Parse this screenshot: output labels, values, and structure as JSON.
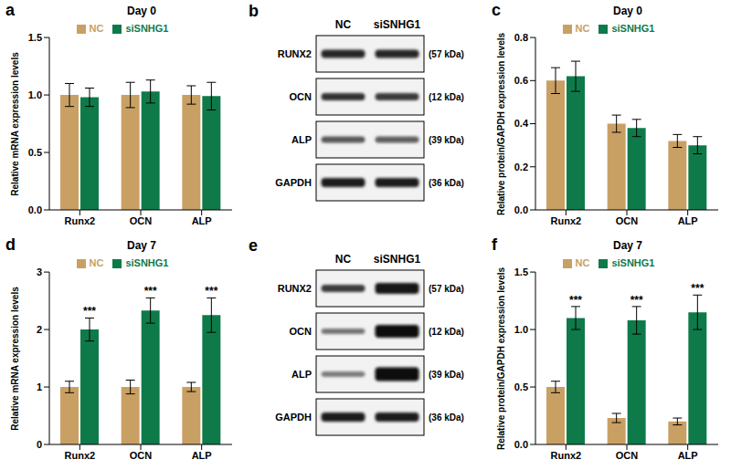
{
  "chart_data": [
    {
      "panel": "a",
      "type": "bar",
      "title": "Day 0",
      "y_label": "Relative mRNA expression levels",
      "categories": [
        "Runx2",
        "OCN",
        "ALP"
      ],
      "series": [
        {
          "name": "NC",
          "color": "#c9a063",
          "values": [
            1.0,
            1.0,
            1.0
          ],
          "errors": [
            0.1,
            0.11,
            0.08
          ]
        },
        {
          "name": "siSNHG1",
          "color": "#0e7a4a",
          "values": [
            0.98,
            1.03,
            0.99
          ],
          "errors": [
            0.08,
            0.1,
            0.12
          ]
        }
      ],
      "ylim": [
        0,
        1.5
      ],
      "yticks": [
        {
          "value": 0,
          "label": "0.0"
        },
        {
          "value": 0.5,
          "label": "0.5"
        },
        {
          "value": 1,
          "label": "1.0"
        },
        {
          "value": 1.5,
          "label": "1.5"
        }
      ],
      "legend": "top"
    },
    {
      "panel": "c",
      "type": "bar",
      "title": "Day 0",
      "y_label": "Relative protein/GAPDH expression levels",
      "categories": [
        "Runx2",
        "OCN",
        "ALP"
      ],
      "series": [
        {
          "name": "NC",
          "color": "#c9a063",
          "values": [
            0.6,
            0.4,
            0.32
          ],
          "errors": [
            0.06,
            0.04,
            0.03
          ]
        },
        {
          "name": "siSNHG1",
          "color": "#0e7a4a",
          "values": [
            0.62,
            0.38,
            0.3
          ],
          "errors": [
            0.07,
            0.04,
            0.04
          ]
        }
      ],
      "ylim": [
        0,
        0.8
      ],
      "yticks": [
        {
          "value": 0,
          "label": "0.0"
        },
        {
          "value": 0.2,
          "label": "0.2"
        },
        {
          "value": 0.4,
          "label": "0.4"
        },
        {
          "value": 0.6,
          "label": "0.6"
        },
        {
          "value": 0.8,
          "label": "0.8"
        }
      ],
      "legend": "top"
    },
    {
      "panel": "d",
      "type": "bar",
      "title": "Day 7",
      "y_label": "Relative mRNA expression levels",
      "categories": [
        "Runx2",
        "OCN",
        "ALP"
      ],
      "series": [
        {
          "name": "NC",
          "color": "#c9a063",
          "values": [
            1.0,
            1.0,
            1.0
          ],
          "errors": [
            0.1,
            0.12,
            0.08
          ]
        },
        {
          "name": "siSNHG1",
          "color": "#0e7a4a",
          "values": [
            2.0,
            2.33,
            2.25
          ],
          "errors": [
            0.2,
            0.22,
            0.3
          ],
          "annotations": [
            "***",
            "***",
            "***"
          ]
        }
      ],
      "ylim": [
        0,
        3
      ],
      "yticks": [
        0,
        1,
        2,
        3
      ],
      "legend": "top"
    },
    {
      "panel": "f",
      "type": "bar",
      "title": "Day 7",
      "y_label": "Relative protein/GAPDH expression levels",
      "categories": [
        "Runx2",
        "OCN",
        "ALP"
      ],
      "series": [
        {
          "name": "NC",
          "color": "#c9a063",
          "values": [
            0.5,
            0.23,
            0.2
          ],
          "errors": [
            0.05,
            0.04,
            0.03
          ]
        },
        {
          "name": "siSNHG1",
          "color": "#0e7a4a",
          "values": [
            1.1,
            1.08,
            1.15
          ],
          "errors": [
            0.1,
            0.12,
            0.15
          ],
          "annotations": [
            "***",
            "***",
            "***"
          ]
        }
      ],
      "ylim": [
        0,
        1.5
      ],
      "yticks": [
        {
          "value": 0,
          "label": "0.0"
        },
        {
          "value": 0.5,
          "label": "0.5"
        },
        {
          "value": 1,
          "label": "1.0"
        },
        {
          "value": 1.5,
          "label": "1.5"
        }
      ],
      "legend": "top"
    }
  ],
  "blots": [
    {
      "panel": "b",
      "lanes": [
        "NC",
        "siSNHG1"
      ],
      "rows": [
        {
          "label": "RUNX2",
          "size": "(57 kDa)"
        },
        {
          "label": "OCN",
          "size": "(12 kDa)"
        },
        {
          "label": "ALP",
          "size": "(39 kDa)"
        },
        {
          "label": "GAPDH",
          "size": "(36 kDa)"
        }
      ]
    },
    {
      "panel": "e",
      "lanes": [
        "NC",
        "siSNHG1"
      ],
      "rows": [
        {
          "label": "RUNX2",
          "size": "(57 kDa)"
        },
        {
          "label": "OCN",
          "size": "(12 kDa)"
        },
        {
          "label": "ALP",
          "size": "(39 kDa)"
        },
        {
          "label": "GAPDH",
          "size": "(36 kDa)"
        }
      ]
    }
  ]
}
